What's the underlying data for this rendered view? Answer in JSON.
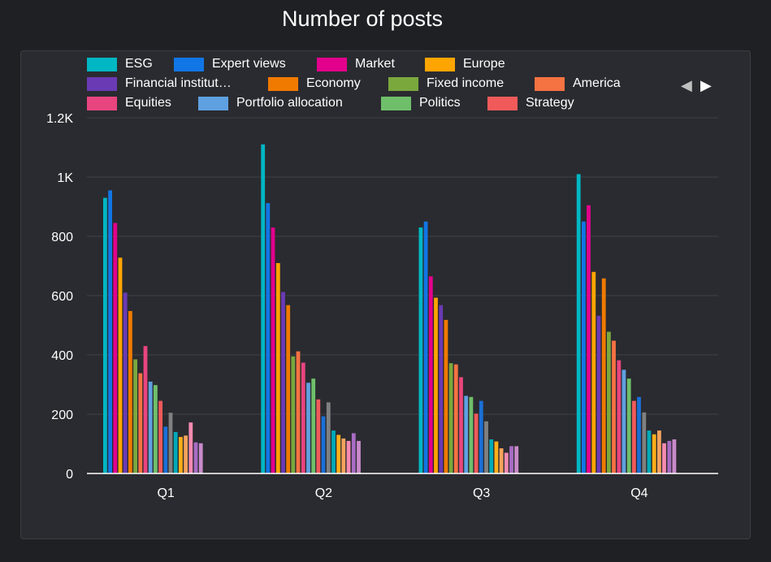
{
  "chart_data": {
    "type": "bar",
    "title": "Number of posts",
    "categories": [
      "Q1",
      "Q2",
      "Q3",
      "Q4"
    ],
    "ylim": [
      0,
      1200
    ],
    "yticks": [
      "0",
      "200",
      "400",
      "600",
      "800",
      "1K",
      "1.2K"
    ],
    "ytick_values": [
      0,
      200,
      400,
      600,
      800,
      1000,
      1200
    ],
    "grid": true,
    "legend_position": "top",
    "series": [
      {
        "name": "ESG",
        "color": "#00b7c3",
        "values": [
          930,
          1110,
          830,
          1010
        ]
      },
      {
        "name": "Expert views",
        "color": "#1176e6",
        "values": [
          955,
          912,
          850,
          850
        ]
      },
      {
        "name": "Market",
        "color": "#e3008c",
        "values": [
          845,
          830,
          665,
          905
        ]
      },
      {
        "name": "Europe",
        "color": "#ffa500",
        "values": [
          728,
          710,
          593,
          680
        ]
      },
      {
        "name": "Financial institut…",
        "color": "#6a3ab5",
        "values": [
          610,
          612,
          568,
          532
        ]
      },
      {
        "name": "Economy",
        "color": "#f07a00",
        "values": [
          548,
          568,
          518,
          658
        ]
      },
      {
        "name": "Fixed income",
        "color": "#7aa83d",
        "values": [
          385,
          395,
          372,
          478
        ]
      },
      {
        "name": "America",
        "color": "#f57242",
        "values": [
          338,
          412,
          368,
          448
        ]
      },
      {
        "name": "Equities",
        "color": "#e8457e",
        "values": [
          430,
          374,
          325,
          382
        ]
      },
      {
        "name": "Portfolio allocation",
        "color": "#5fa0e0",
        "values": [
          310,
          306,
          262,
          350
        ]
      },
      {
        "name": "Politics",
        "color": "#6fbf6a",
        "values": [
          298,
          320,
          258,
          320
        ]
      },
      {
        "name": "Strategy",
        "color": "#f05a5a",
        "values": [
          245,
          250,
          202,
          245
        ]
      },
      {
        "name": "",
        "color": "#1a6fd6",
        "values": [
          158,
          193,
          245,
          258
        ]
      },
      {
        "name": "",
        "color": "#808080",
        "values": [
          205,
          240,
          176,
          206
        ]
      },
      {
        "name": "",
        "color": "#00aab8",
        "values": [
          140,
          145,
          115,
          145
        ]
      },
      {
        "name": "",
        "color": "#ffae1a",
        "values": [
          123,
          130,
          108,
          132
        ]
      },
      {
        "name": "",
        "color": "#f5a35c",
        "values": [
          128,
          118,
          85,
          145
        ]
      },
      {
        "name": "",
        "color": "#f58ab0",
        "values": [
          172,
          110,
          70,
          102
        ]
      },
      {
        "name": "",
        "color": "#a86cc4",
        "values": [
          105,
          136,
          92,
          110
        ]
      },
      {
        "name": "",
        "color": "#c98ac9",
        "values": [
          102,
          110,
          92,
          115
        ]
      }
    ]
  },
  "legend_nav": {
    "prev": "◀",
    "next": "▶"
  }
}
